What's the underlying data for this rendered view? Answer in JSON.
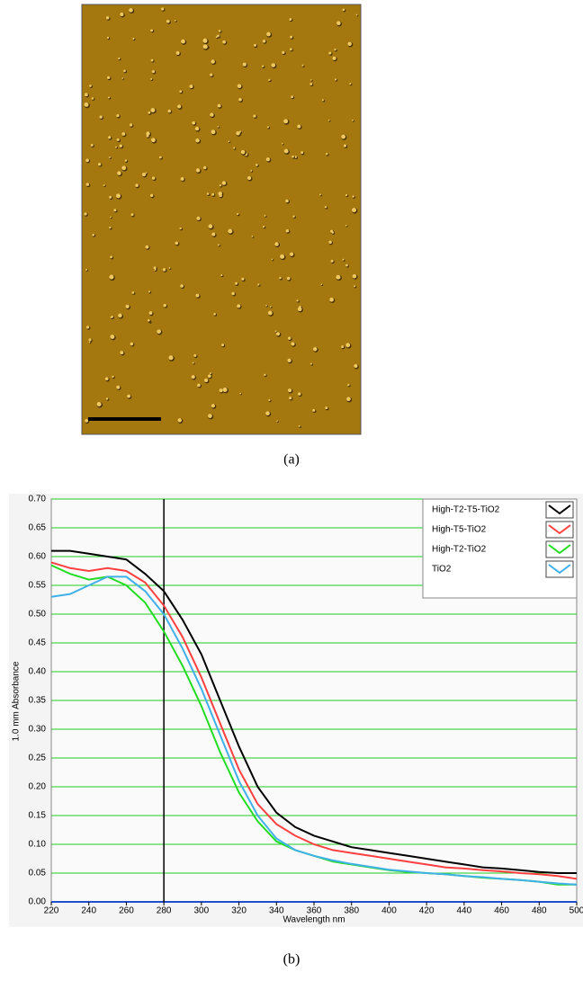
{
  "panel_a": {
    "caption": "(a)"
  },
  "panel_b": {
    "caption": "(b)"
  },
  "chart_data": {
    "type": "line",
    "xlabel": "Wavelength nm",
    "ylabel": "1.0 mm Absorbance",
    "x": [
      220,
      230,
      240,
      250,
      260,
      270,
      280,
      290,
      300,
      310,
      320,
      330,
      340,
      350,
      360,
      370,
      380,
      390,
      400,
      410,
      420,
      430,
      440,
      450,
      460,
      470,
      480,
      490,
      500
    ],
    "series": [
      {
        "name": "High-T2-T5-TiO2",
        "color": "#000000",
        "values": [
          0.61,
          0.61,
          0.605,
          0.6,
          0.595,
          0.57,
          0.54,
          0.49,
          0.43,
          0.35,
          0.27,
          0.2,
          0.155,
          0.13,
          0.115,
          0.105,
          0.095,
          0.09,
          0.085,
          0.08,
          0.075,
          0.07,
          0.065,
          0.06,
          0.058,
          0.055,
          0.052,
          0.05,
          0.05
        ]
      },
      {
        "name": "High-T5-TiO2",
        "color": "#ff4040",
        "values": [
          0.59,
          0.58,
          0.575,
          0.58,
          0.575,
          0.555,
          0.515,
          0.46,
          0.39,
          0.31,
          0.23,
          0.17,
          0.135,
          0.115,
          0.1,
          0.09,
          0.085,
          0.08,
          0.075,
          0.07,
          0.065,
          0.06,
          0.058,
          0.055,
          0.053,
          0.05,
          0.048,
          0.045,
          0.04
        ]
      },
      {
        "name": "High-T2-TiO2",
        "color": "#22dd22",
        "values": [
          0.585,
          0.57,
          0.56,
          0.565,
          0.55,
          0.52,
          0.47,
          0.41,
          0.34,
          0.26,
          0.19,
          0.14,
          0.105,
          0.09,
          0.08,
          0.07,
          0.065,
          0.06,
          0.055,
          0.052,
          0.05,
          0.048,
          0.045,
          0.042,
          0.04,
          0.038,
          0.035,
          0.03,
          0.03
        ]
      },
      {
        "name": "TiO2",
        "color": "#40b0e8",
        "values": [
          0.53,
          0.535,
          0.55,
          0.565,
          0.565,
          0.54,
          0.5,
          0.44,
          0.37,
          0.29,
          0.21,
          0.15,
          0.11,
          0.09,
          0.08,
          0.072,
          0.066,
          0.061,
          0.056,
          0.053,
          0.05,
          0.048,
          0.045,
          0.043,
          0.04,
          0.038,
          0.035,
          0.032,
          0.03
        ]
      }
    ],
    "marker_x": 280,
    "xlim": [
      220,
      500
    ],
    "ylim": [
      0,
      0.7
    ],
    "xticks": [
      220,
      240,
      260,
      280,
      300,
      320,
      340,
      360,
      380,
      400,
      420,
      440,
      460,
      480,
      500
    ],
    "yticks": [
      {
        "value": 0,
        "label": "0.00"
      },
      0.05,
      {
        "value": 0.1,
        "label": "0.10"
      },
      0.15,
      {
        "value": 0.2,
        "label": "0.20"
      },
      0.25,
      {
        "value": 0.3,
        "label": "0.30"
      },
      0.35,
      {
        "value": 0.4,
        "label": "0.40"
      },
      0.45,
      {
        "value": 0.5,
        "label": "0.50"
      },
      0.55,
      {
        "value": 0.6,
        "label": "0.60"
      },
      0.65,
      {
        "value": 0.7,
        "label": "0.70"
      }
    ],
    "grid": true,
    "legend": "upper right"
  }
}
